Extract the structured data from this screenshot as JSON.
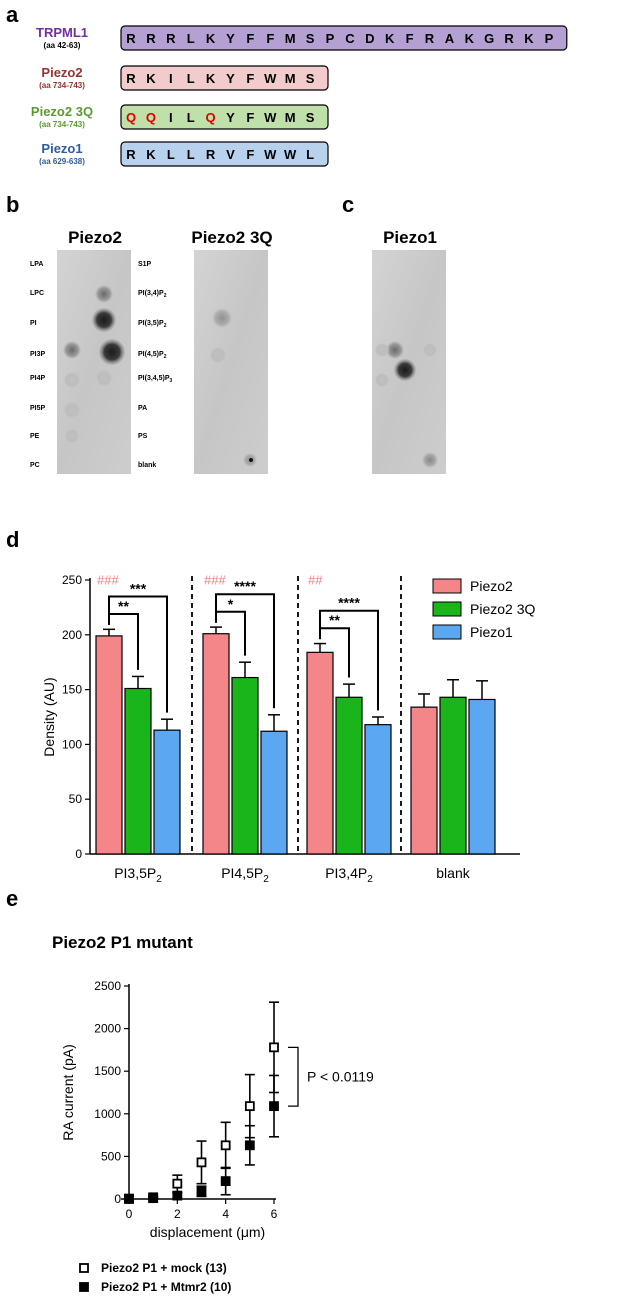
{
  "panels": {
    "a": "a",
    "b": "b",
    "c": "c",
    "d": "d",
    "e": "e"
  },
  "sequences": [
    {
      "name": "TRPML1",
      "range": "(aa 42-63)",
      "color": "#7030a0",
      "fill": "#b4a0d2",
      "residues": [
        "R",
        "R",
        "R",
        "L",
        "K",
        "Y",
        "F",
        "F",
        "M",
        "S",
        "P",
        "C",
        "D",
        "K",
        "F",
        "R",
        "A",
        "K",
        "G",
        "R",
        "K",
        "P"
      ],
      "red": []
    },
    {
      "name": "Piezo2",
      "range": "(aa 734-743)",
      "color": "#963232",
      "fill": "#f2cccc",
      "residues": [
        "R",
        "K",
        "I",
        "L",
        "K",
        "Y",
        "F",
        "W",
        "M",
        "S"
      ],
      "red": []
    },
    {
      "name": "Piezo2 3Q",
      "range": "(aa 734-743)",
      "color": "#5a9a32",
      "fill": "#bfe0a8",
      "residues": [
        "Q",
        "Q",
        "I",
        "L",
        "Q",
        "Y",
        "F",
        "W",
        "M",
        "S"
      ],
      "red": [
        0,
        1,
        4
      ]
    },
    {
      "name": "Piezo1",
      "range": "(aa 629-638)",
      "color": "#2e5c9e",
      "fill": "#b8d2ee",
      "residues": [
        "R",
        "K",
        "L",
        "L",
        "R",
        "V",
        "F",
        "W",
        "W",
        "L"
      ],
      "red": []
    }
  ],
  "blots": {
    "titles": [
      "Piezo2",
      "Piezo2 3Q",
      "Piezo1"
    ],
    "left_labels": [
      "LPA",
      "LPC",
      "PI",
      "PI3P",
      "PI4P",
      "PI5P",
      "PE",
      "PC"
    ],
    "right_labels": [
      {
        "t": "S1P"
      },
      {
        "t": "PI(3,4)P",
        "s": "2"
      },
      {
        "t": "PI(3,5)P",
        "s": "2"
      },
      {
        "t": "PI(4,5)P",
        "s": "2"
      },
      {
        "t": "PI(3,4,5)P",
        "s": "3"
      },
      {
        "t": "PA"
      },
      {
        "t": "PS"
      },
      {
        "t": "blank"
      }
    ]
  },
  "chart_data": [
    {
      "type": "bar",
      "ylabel": "Density  (AU)",
      "ylim": [
        0,
        250
      ],
      "yticks": [
        0,
        50,
        100,
        150,
        200,
        250
      ],
      "categories": [
        {
          "main": "PI3,5P",
          "sub": "2"
        },
        {
          "main": "PI4,5P",
          "sub": "2"
        },
        {
          "main": "PI3,4P",
          "sub": "2"
        },
        {
          "main": "blank",
          "sub": ""
        }
      ],
      "series": [
        {
          "name": "Piezo2",
          "color": "#f4868a",
          "values": [
            199,
            201,
            184,
            134
          ],
          "errors": [
            6,
            6,
            8,
            12
          ]
        },
        {
          "name": "Piezo2 3Q",
          "color": "#1ab51a",
          "values": [
            151,
            161,
            143,
            143
          ],
          "errors": [
            11,
            14,
            12,
            16
          ]
        },
        {
          "name": "Piezo1",
          "color": "#5ba7f2",
          "values": [
            113,
            112,
            118,
            141
          ],
          "errors": [
            10,
            15,
            7,
            17
          ]
        }
      ],
      "hash_marks": [
        "###",
        "###",
        "##",
        ""
      ],
      "significance": [
        {
          "group": 0,
          "pairs": [
            {
              "to": 1,
              "label": "**"
            },
            {
              "to": 2,
              "label": "***"
            }
          ]
        },
        {
          "group": 1,
          "pairs": [
            {
              "to": 1,
              "label": "*"
            },
            {
              "to": 2,
              "label": "****"
            }
          ]
        },
        {
          "group": 2,
          "pairs": [
            {
              "to": 1,
              "label": "**"
            },
            {
              "to": 2,
              "label": "****"
            }
          ]
        }
      ],
      "legend": "top-right"
    },
    {
      "type": "scatter",
      "title": "Piezo2 P1 mutant",
      "xlabel": "displacement (μm)",
      "ylabel": "RA current (pA)",
      "xlim": [
        0,
        6
      ],
      "ylim": [
        0,
        2500
      ],
      "xticks": [
        0,
        2,
        4,
        6
      ],
      "yticks": [
        0,
        500,
        1000,
        1500,
        2000,
        2500
      ],
      "series": [
        {
          "name": "Piezo2 P1 + mock (13)",
          "marker": "open-square",
          "x": [
            0,
            1,
            2,
            3,
            4,
            5,
            6
          ],
          "y": [
            5,
            20,
            180,
            430,
            630,
            1090,
            1780
          ],
          "err": [
            5,
            10,
            100,
            250,
            270,
            370,
            530
          ]
        },
        {
          "name": "Piezo2 P1 + Mtmr2 (10)",
          "marker": "filled-square",
          "x": [
            0,
            1,
            2,
            3,
            4,
            5,
            6
          ],
          "y": [
            0,
            10,
            40,
            90,
            210,
            630,
            1090
          ],
          "err": [
            5,
            10,
            30,
            60,
            160,
            230,
            360
          ]
        }
      ],
      "annotation": "P < 0.0119",
      "legend": "bottom-left"
    }
  ]
}
